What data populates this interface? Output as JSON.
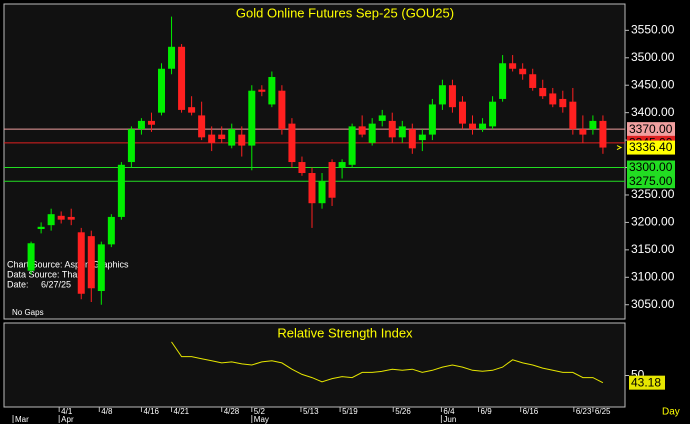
{
  "chart_data": {
    "type": "candlestick",
    "title": "Gold Online Futures Sep-25 (GOU25)",
    "notes": [
      "Chart Source: Aspen Graphics",
      "Data Source: Thai",
      "Date:     6/27/25"
    ],
    "gap_note": "No Gaps",
    "x_unit_label": "Day",
    "up_color": "#00ee00",
    "down_color": "#ff2020",
    "xlim": [
      -2.7,
      59.2
    ],
    "xticks": [
      {
        "value": 2.8,
        "label": "4/1"
      },
      {
        "value": 6.8,
        "label": "4/8"
      },
      {
        "value": 11,
        "label": "4/16"
      },
      {
        "value": 14,
        "label": "4/21"
      },
      {
        "value": 19,
        "label": "4/28"
      },
      {
        "value": 22,
        "label": "5/2"
      },
      {
        "value": 26.9,
        "label": "5/13"
      },
      {
        "value": 30.8,
        "label": "5/19"
      },
      {
        "value": 36.1,
        "label": "5/26"
      },
      {
        "value": 40.9,
        "label": "6/4"
      },
      {
        "value": 44.6,
        "label": "6/9"
      },
      {
        "value": 48.8,
        "label": "6/16"
      },
      {
        "value": 54.1,
        "label": "6/23"
      },
      {
        "value": 56,
        "label": "6/25"
      }
    ],
    "month_ticks": [
      {
        "value": -1.8,
        "label": "Mar"
      },
      {
        "value": 2.8,
        "label": "Apr"
      },
      {
        "value": 22,
        "label": "May"
      },
      {
        "value": 40.9,
        "label": "Jun"
      }
    ],
    "ylim": [
      3024,
      3598
    ],
    "yticks": [
      {
        "value": 3050,
        "label": "3050.00"
      },
      {
        "value": 3100,
        "label": "3100.00"
      },
      {
        "value": 3150,
        "label": "3150.00"
      },
      {
        "value": 3200,
        "label": "3200.00"
      },
      {
        "value": 3250,
        "label": "3250.00"
      },
      {
        "value": 3300,
        "label": "3300.00"
      },
      {
        "value": 3350,
        "label": "3350.00"
      },
      {
        "value": 3400,
        "label": "3400.00"
      },
      {
        "value": 3450,
        "label": "3450.00"
      },
      {
        "value": 3500,
        "label": "3500.00"
      },
      {
        "value": 3550,
        "label": "3550.00"
      }
    ],
    "levels": [
      {
        "value": 3370,
        "label": "3370.00",
        "color": "#f0a0a0"
      },
      {
        "value": 3345,
        "label": "3345.00",
        "color": "#e02020"
      },
      {
        "value": 3300,
        "label": "3300.00",
        "color": "#22dd22"
      },
      {
        "value": 3275,
        "label": "3275.00",
        "color": "#22dd22"
      }
    ],
    "last_price": {
      "value": 3336.4,
      "label": "3336.40",
      "color": "#ffff00"
    },
    "open": [
      3112,
      3188,
      3195,
      3212,
      3210,
      3182,
      3175,
      3075,
      3160,
      3210,
      3310,
      3370,
      3385,
      3400,
      3480,
      3520,
      3410,
      3395,
      3360,
      3360,
      3340,
      3360,
      3340,
      3442,
      3415,
      3440,
      3380,
      3310,
      3290,
      3235,
      3310,
      3300,
      3305,
      3375,
      3345,
      3385,
      3385,
      3355,
      3370,
      3350,
      3360,
      3415,
      3450,
      3420,
      3380,
      3370,
      3375,
      3425,
      3490,
      3480,
      3470,
      3445,
      3435,
      3425,
      3420,
      3370,
      3370,
      3385
    ],
    "high": [
      3165,
      3200,
      3225,
      3220,
      3225,
      3190,
      3185,
      3165,
      3215,
      3310,
      3375,
      3390,
      3400,
      3490,
      3575,
      3525,
      3430,
      3420,
      3375,
      3375,
      3380,
      3375,
      3450,
      3450,
      3475,
      3450,
      3390,
      3320,
      3300,
      3290,
      3315,
      3315,
      3380,
      3395,
      3390,
      3405,
      3400,
      3385,
      3380,
      3370,
      3425,
      3460,
      3460,
      3430,
      3395,
      3390,
      3430,
      3505,
      3505,
      3490,
      3480,
      3460,
      3445,
      3440,
      3445,
      3395,
      3395,
      3395
    ],
    "low": [
      3105,
      3180,
      3185,
      3198,
      3195,
      3060,
      3055,
      3050,
      3155,
      3205,
      3300,
      3360,
      3365,
      3395,
      3470,
      3400,
      3395,
      3350,
      3330,
      3345,
      3335,
      3320,
      3295,
      3430,
      3410,
      3360,
      3300,
      3285,
      3190,
      3225,
      3230,
      3280,
      3300,
      3355,
      3340,
      3375,
      3345,
      3345,
      3325,
      3330,
      3350,
      3405,
      3400,
      3370,
      3360,
      3365,
      3370,
      3420,
      3475,
      3460,
      3440,
      3425,
      3410,
      3400,
      3360,
      3345,
      3360,
      3325
    ],
    "close": [
      3162,
      3192,
      3215,
      3205,
      3205,
      3070,
      3080,
      3160,
      3210,
      3305,
      3370,
      3385,
      3378,
      3480,
      3520,
      3405,
      3400,
      3355,
      3345,
      3352,
      3370,
      3340,
      3440,
      3438,
      3465,
      3370,
      3310,
      3290,
      3235,
      3275,
      3245,
      3310,
      3375,
      3360,
      3380,
      3395,
      3355,
      3375,
      3335,
      3360,
      3415,
      3450,
      3410,
      3380,
      3370,
      3380,
      3420,
      3490,
      3480,
      3470,
      3445,
      3430,
      3415,
      3410,
      3370,
      3360,
      3385,
      3336.4
    ],
    "rsi": {
      "title": "Relative Strength Index",
      "color": "#e6e600",
      "ylim": [
        20,
        100
      ],
      "yticks": [
        50
      ],
      "last_label": "43.18",
      "values": [
        null,
        null,
        null,
        null,
        null,
        null,
        null,
        null,
        null,
        null,
        null,
        null,
        null,
        null,
        82,
        68,
        68,
        66,
        64,
        62,
        63,
        61,
        60,
        63,
        64,
        62,
        56,
        51,
        48,
        44,
        47,
        49,
        48,
        53,
        53,
        54,
        56,
        55,
        56,
        53,
        55,
        58,
        60,
        58,
        55,
        54,
        55,
        58,
        65,
        62,
        60,
        57,
        55,
        53,
        53,
        48,
        48,
        43.18
      ]
    }
  }
}
